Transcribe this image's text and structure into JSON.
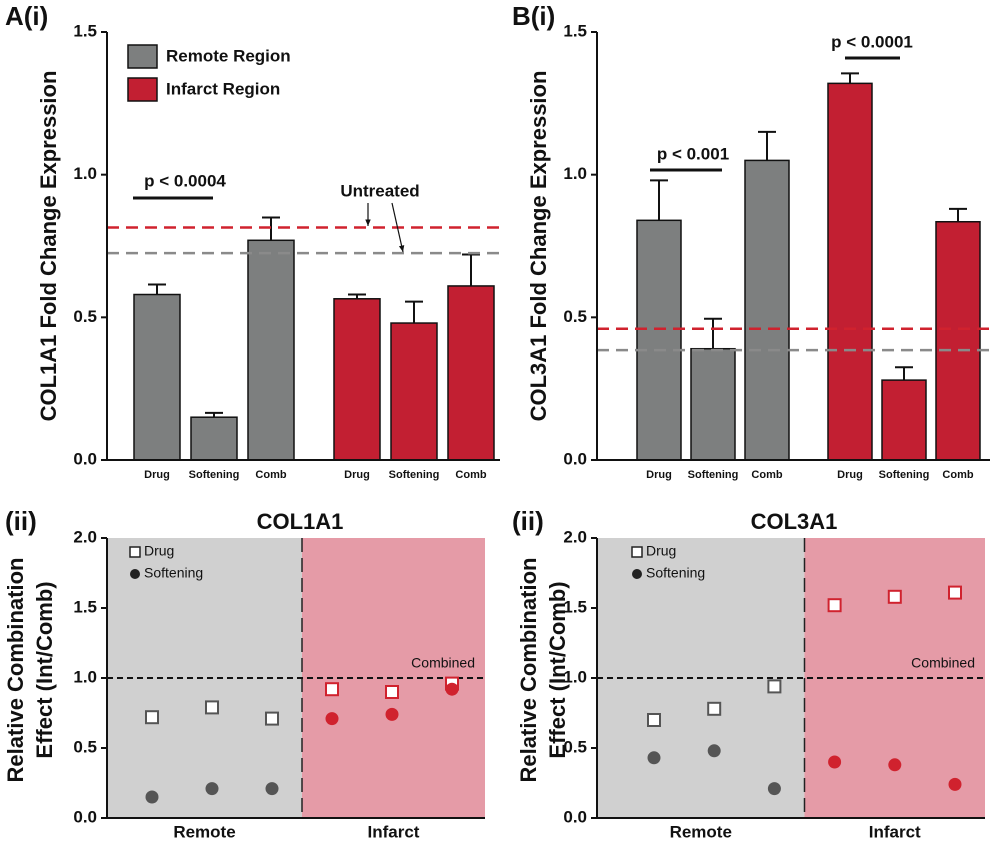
{
  "chart_data": [
    {
      "type": "bar",
      "panel_label": "A(i)",
      "y_label": "COL1A1 Fold Change Expression",
      "categories": [
        "Drug",
        "Softening",
        "Comb",
        "Drug",
        "Softening",
        "Comb"
      ],
      "series": [
        {
          "name": "Remote Region",
          "color": "#7d7f7f",
          "values": [
            0.58,
            0.15,
            0.77,
            null,
            null,
            null
          ],
          "errors": [
            0.035,
            0.015,
            0.08,
            null,
            null,
            null
          ]
        },
        {
          "name": "Infarct Region",
          "color": "#c21f32",
          "values": [
            null,
            null,
            null,
            0.565,
            0.48,
            0.61
          ],
          "errors": [
            null,
            null,
            null,
            0.015,
            0.075,
            0.11
          ]
        }
      ],
      "reference_lines": [
        {
          "value": 0.815,
          "color": "#d0222e"
        },
        {
          "value": 0.725,
          "color": "#8a8a8a"
        }
      ],
      "annotations": [
        "p < 0.0004",
        "Untreated"
      ],
      "ylim": [
        0,
        1.5
      ],
      "yticks": [
        {
          "value": 0,
          "label": "0.0"
        },
        0.5,
        {
          "value": 1,
          "label": "1.0"
        },
        1.5
      ]
    },
    {
      "type": "bar",
      "panel_label": "B(i)",
      "y_label": "COL3A1 Fold Change Expression",
      "categories": [
        "Drug",
        "Softening",
        "Comb",
        "Drug",
        "Softening",
        "Comb"
      ],
      "series": [
        {
          "color": "#7d7f7f",
          "values": [
            0.84,
            0.39,
            1.05,
            null,
            null,
            null
          ],
          "errors": [
            0.14,
            0.105,
            0.1,
            null,
            null,
            null
          ]
        },
        {
          "color": "#c21f32",
          "values": [
            null,
            null,
            null,
            1.32,
            0.28,
            0.835
          ],
          "errors": [
            null,
            null,
            null,
            0.035,
            0.045,
            0.045
          ]
        }
      ],
      "reference_lines": [
        {
          "value": 0.46,
          "color": "#d0222e"
        },
        {
          "value": 0.385,
          "color": "#8a8a8a"
        }
      ],
      "annotations": [
        "p < 0.001",
        "p < 0.0001"
      ],
      "ylim": [
        0,
        1.5
      ],
      "yticks": [
        {
          "value": 0,
          "label": "0.0"
        },
        0.5,
        {
          "value": 1,
          "label": "1.0"
        },
        1.5
      ]
    },
    {
      "type": "scatter",
      "panel_label": "(ii)",
      "title": "COL1A1",
      "y_label": [
        "Relative Combination",
        "Effect (Int/Comb)"
      ],
      "groups": [
        "Remote",
        "Infarct"
      ],
      "group_colors": [
        "#555555",
        "#d0222e"
      ],
      "background_colors": [
        "#d0d0d0",
        "#e59ba7"
      ],
      "series": [
        {
          "name": "Drug",
          "marker": "square",
          "values": [
            0.72,
            0.79,
            0.71,
            0.92,
            0.9,
            0.96
          ]
        },
        {
          "name": "Softening",
          "marker": "circle",
          "values": [
            0.15,
            0.21,
            0.21,
            0.71,
            0.74,
            0.92
          ]
        }
      ],
      "reference_lines": [
        {
          "value": 1,
          "label": "Combined"
        }
      ],
      "ylim": [
        0,
        2
      ],
      "yticks": [
        {
          "value": 0,
          "label": "0.0"
        },
        0.5,
        {
          "value": 1,
          "label": "1.0"
        },
        1.5,
        {
          "value": 2,
          "label": "2.0"
        }
      ]
    },
    {
      "type": "scatter",
      "panel_label": "(ii)",
      "title": "COL3A1",
      "y_label": [
        "Relative Combination",
        "Effect (Int/Comb)"
      ],
      "groups": [
        "Remote",
        "Infarct"
      ],
      "group_colors": [
        "#555555",
        "#d0222e"
      ],
      "background_colors": [
        "#d0d0d0",
        "#e59ba7"
      ],
      "series": [
        {
          "name": "Drug",
          "marker": "square",
          "values": [
            0.7,
            0.78,
            0.94,
            1.52,
            1.58,
            1.61
          ]
        },
        {
          "name": "Softening",
          "marker": "circle",
          "values": [
            0.43,
            0.48,
            0.21,
            0.4,
            0.38,
            0.24
          ]
        }
      ],
      "reference_lines": [
        {
          "value": 1,
          "label": "Combined"
        }
      ],
      "ylim": [
        0,
        2
      ],
      "yticks": [
        {
          "value": 0,
          "label": "0.0"
        },
        0.5,
        {
          "value": 1,
          "label": "1.0"
        },
        1.5,
        {
          "value": 2,
          "label": "2.0"
        }
      ]
    }
  ]
}
